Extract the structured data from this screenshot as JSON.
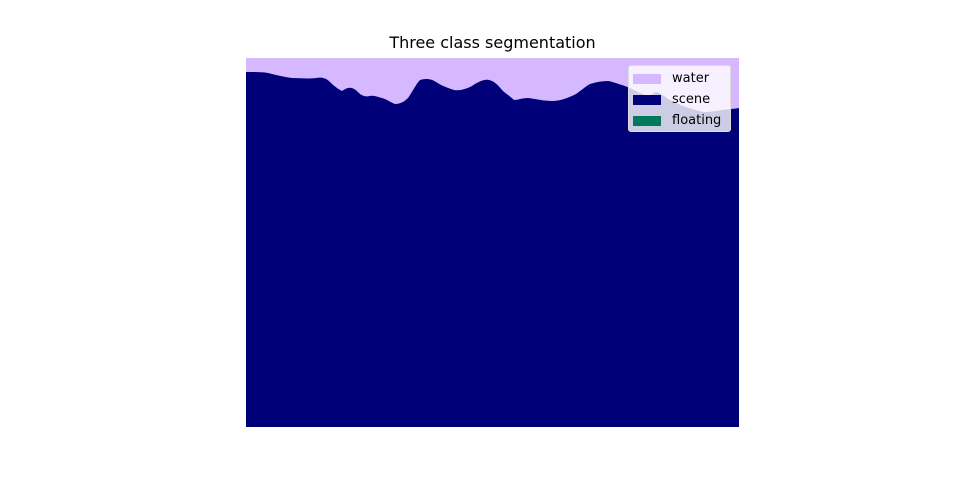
{
  "chart_data": {
    "type": "heatmap",
    "title": "Three class segmentation",
    "classes": [
      {
        "name": "water",
        "color": "#d5b8ff"
      },
      {
        "name": "scene",
        "color": "#000078"
      },
      {
        "name": "floating",
        "color": "#00785a"
      }
    ],
    "class_fractions": {
      "water": 0.05,
      "scene": 0.95,
      "floating": 0.0
    },
    "axes_visible": false,
    "legend": {
      "position": "top-right",
      "entries": [
        "water",
        "scene",
        "floating"
      ]
    }
  }
}
